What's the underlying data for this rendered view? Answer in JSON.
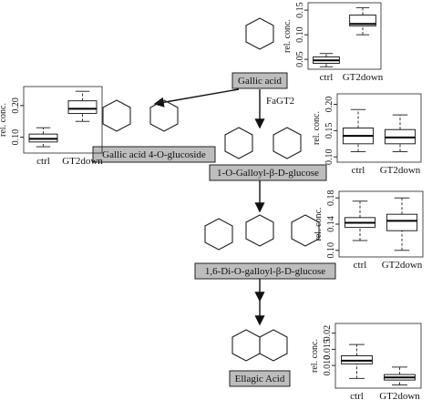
{
  "enzyme": "FaGT2",
  "nodes": [
    {
      "label": "Gallic acid"
    },
    {
      "label": "Gallic acid 4-O-glucoside"
    },
    {
      "label": "1-O-Galloyl-β-D-glucose"
    },
    {
      "label": "1,6-Di-O-galloyl-β-D-glucose"
    },
    {
      "label": "Ellagic Acid"
    }
  ],
  "chart_data": [
    {
      "type": "box",
      "y_label": "rel. conc.",
      "categories": [
        "ctrl",
        "GT2down"
      ],
      "boxes": [
        {
          "whislo": 0.035,
          "q1": 0.042,
          "med": 0.048,
          "q3": 0.055,
          "whishi": 0.062
        },
        {
          "whislo": 0.1,
          "q1": 0.118,
          "med": 0.122,
          "q3": 0.14,
          "whishi": 0.155
        }
      ],
      "ylim": [
        0.03,
        0.165
      ],
      "yticks": [
        0.05,
        {
          "value": 0.1,
          "label": "0.10"
        },
        0.15
      ]
    },
    {
      "type": "box",
      "y_label": "rel. conc.",
      "categories": [
        "ctrl",
        "GT2down"
      ],
      "boxes": [
        {
          "whislo": 0.07,
          "q1": 0.085,
          "med": 0.095,
          "q3": 0.11,
          "whishi": 0.13
        },
        {
          "whislo": 0.15,
          "q1": 0.175,
          "med": 0.19,
          "q3": 0.215,
          "whishi": 0.245
        }
      ],
      "ylim": [
        0.05,
        0.26
      ],
      "yticks": [
        {
          "value": 0.1,
          "label": "0.10"
        },
        {
          "value": 0.2,
          "label": "0.20"
        }
      ]
    },
    {
      "type": "box",
      "y_label": "rel. conc.",
      "categories": [
        "ctrl",
        "GT2down"
      ],
      "boxes": [
        {
          "whislo": 0.11,
          "q1": 0.125,
          "med": 0.14,
          "q3": 0.155,
          "whishi": 0.19
        },
        {
          "whislo": 0.11,
          "q1": 0.125,
          "med": 0.137,
          "q3": 0.152,
          "whishi": 0.18
        }
      ],
      "ylim": [
        0.09,
        0.22
      ],
      "yticks": [
        {
          "value": 0.1,
          "label": "0.10"
        },
        0.15,
        {
          "value": 0.2,
          "label": "0.20"
        }
      ]
    },
    {
      "type": "box",
      "y_label": "rel. conc.",
      "categories": [
        "ctrl",
        "GT2down"
      ],
      "boxes": [
        {
          "whislo": 0.115,
          "q1": 0.135,
          "med": 0.142,
          "q3": 0.15,
          "whishi": 0.175
        },
        {
          "whislo": 0.1,
          "q1": 0.13,
          "med": 0.145,
          "q3": 0.155,
          "whishi": 0.18
        }
      ],
      "ylim": [
        0.09,
        0.19
      ],
      "yticks": [
        {
          "value": 0.1,
          "label": "0.10"
        },
        0.14,
        0.18
      ]
    },
    {
      "type": "box",
      "y_label": "rel. conc.",
      "categories": [
        "ctrl",
        "GT2down"
      ],
      "boxes": [
        {
          "whislo": 0.006,
          "q1": 0.0105,
          "med": 0.0115,
          "q3": 0.013,
          "whishi": 0.0165
        },
        {
          "whislo": 0.004,
          "q1": 0.0055,
          "med": 0.0063,
          "q3": 0.0072,
          "whishi": 0.0095
        }
      ],
      "ylim": [
        0.003,
        0.023
      ],
      "yticks": [
        {
          "value": 0.01,
          "label": "0.010"
        },
        0.015,
        0.02
      ]
    }
  ]
}
